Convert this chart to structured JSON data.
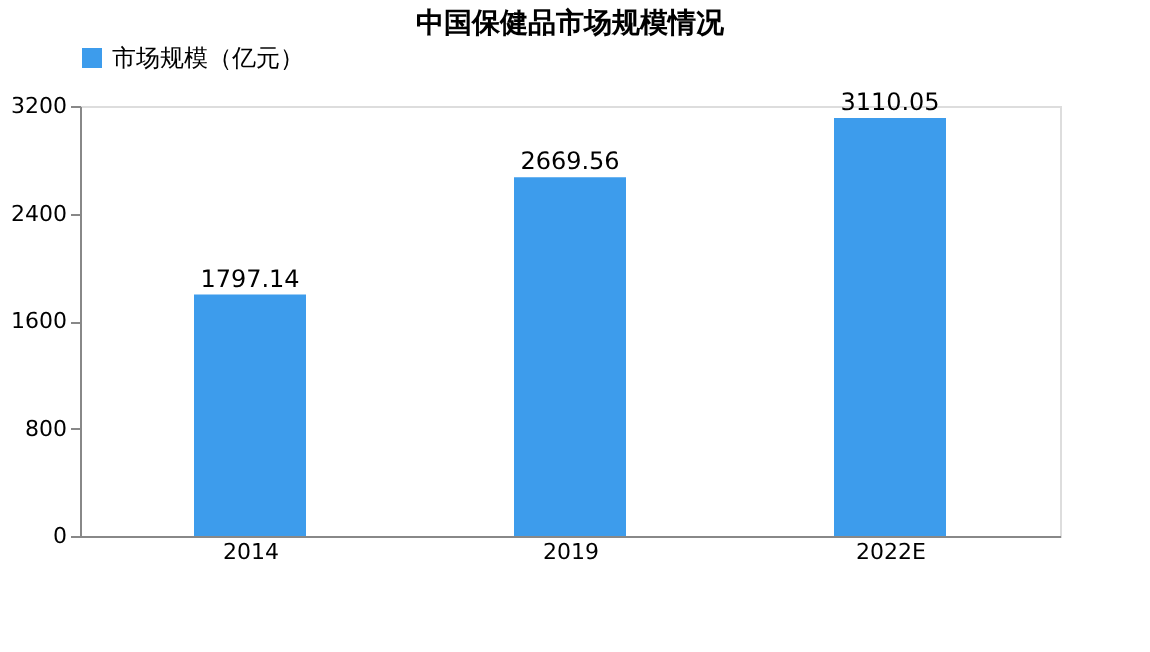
{
  "chart_data": {
    "type": "bar",
    "title": "中国保健品市场规模情况",
    "categories": [
      "2014",
      "2019",
      "2022E"
    ],
    "series": [
      {
        "name": "市场规模（亿元）",
        "color": "#3d9cec",
        "values": [
          1797.14,
          2669.56,
          3110.05
        ]
      }
    ],
    "ylim": [
      0,
      3200
    ],
    "yticks": [
      0,
      800,
      1600,
      2400,
      3200
    ],
    "data_labels": true,
    "legend": "top",
    "grid": false
  }
}
